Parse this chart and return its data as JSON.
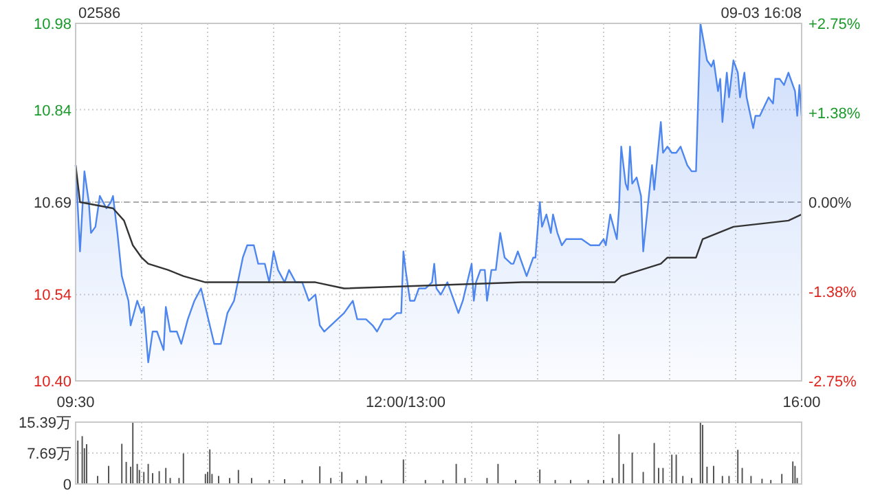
{
  "chart_data": [
    {
      "type": "area",
      "title": "02586",
      "subtitle": "09-03 16:08",
      "categories": [
        "09:30",
        null,
        null,
        null,
        null,
        null,
        null,
        null,
        null,
        null,
        null,
        null,
        null,
        null,
        null,
        null,
        null,
        null,
        null,
        null,
        null,
        null,
        null,
        null,
        null,
        null,
        null,
        null,
        null,
        null,
        null,
        null,
        null,
        null,
        null,
        null,
        null,
        null,
        null,
        null,
        null,
        null,
        null,
        null,
        null,
        null,
        null,
        null,
        null,
        null,
        null,
        null,
        null,
        null,
        null,
        null,
        null,
        null,
        null,
        null,
        null,
        null,
        null,
        null,
        null,
        null,
        null,
        null,
        null,
        null,
        null,
        null,
        null,
        null,
        null,
        null,
        null,
        null,
        null,
        null,
        null,
        null,
        null,
        null,
        null,
        null,
        null,
        null,
        null,
        null,
        null,
        null,
        null,
        null,
        null,
        null,
        null,
        null,
        null,
        null,
        null,
        null,
        null,
        null,
        null,
        null,
        null,
        null,
        null,
        null,
        null,
        null,
        null,
        null,
        null,
        null,
        null,
        null,
        null,
        null,
        null,
        null,
        null,
        null,
        null,
        null,
        null,
        null,
        null,
        null,
        null,
        null,
        null,
        null,
        null,
        null,
        null,
        null,
        null,
        null,
        null,
        null,
        null,
        null,
        null,
        null,
        null,
        null,
        null,
        null,
        "12:00/13:00",
        null,
        null,
        null,
        null,
        null,
        null,
        null,
        null,
        null,
        null,
        null,
        null,
        null,
        null,
        null,
        null,
        null,
        null,
        null,
        null,
        null,
        null,
        null,
        null,
        null,
        null,
        null,
        null,
        null,
        null,
        null,
        null,
        null,
        null,
        null,
        null,
        null,
        null,
        null,
        null,
        null,
        null,
        null,
        null,
        null,
        null,
        null,
        null,
        null,
        null,
        null,
        null,
        null,
        null,
        null,
        null,
        null,
        null,
        null,
        null,
        null,
        null,
        null,
        null,
        null,
        null,
        null,
        null,
        null,
        null,
        null,
        null,
        null,
        null,
        null,
        null,
        null,
        null,
        null,
        null,
        null,
        null,
        null,
        null,
        null,
        null,
        null,
        null,
        null,
        null,
        null,
        null,
        null,
        null,
        null,
        null,
        null,
        null,
        null,
        null,
        null,
        null,
        null,
        null,
        null,
        null,
        null,
        null,
        null,
        null,
        null,
        null,
        null,
        null,
        null,
        null,
        null,
        null,
        null,
        null,
        null,
        null,
        null,
        null,
        null,
        null,
        null,
        null,
        null,
        null,
        null,
        null,
        null,
        null,
        null,
        null,
        null,
        null,
        null,
        null,
        null,
        null,
        null,
        null,
        null,
        null,
        null,
        null,
        null,
        null,
        null,
        null,
        null,
        null,
        null,
        null,
        null,
        null,
        null,
        null,
        null,
        null,
        null,
        null,
        null,
        null,
        null,
        null,
        null,
        null,
        null,
        null,
        null,
        null,
        null,
        null,
        null,
        null,
        null,
        "16:00"
      ],
      "ylim": [
        10.4,
        10.98
      ],
      "yticks": [
        {
          "value": 10.4,
          "label": "10.40"
        },
        {
          "value": 10.54,
          "label": "10.54"
        },
        {
          "value": 10.69,
          "label": "10.69"
        },
        {
          "value": 10.84,
          "label": "10.84"
        },
        {
          "value": 10.98,
          "label": "10.98"
        }
      ],
      "y2lim": [
        -2.75,
        2.75
      ],
      "y2ticks": [
        {
          "value": -2.75,
          "label": "-2.75%"
        },
        {
          "value": -1.38,
          "label": "-1.38%"
        },
        {
          "value": 0,
          "label": "0.00%"
        },
        {
          "value": 1.38,
          "label": "+1.38%"
        },
        {
          "value": 2.75,
          "label": "+2.75%"
        }
      ],
      "grid": true,
      "ref_lines": [
        {
          "axis": "y",
          "value": 10.69,
          "color": "#aaaaaa",
          "line_style": "dashed"
        }
      ],
      "series": [
        {
          "color": "#4e86f0",
          "values": [
            10.75,
            null,
            10.61,
            null,
            10.74,
            null,
            10.69,
            10.64,
            null,
            10.65,
            null,
            10.7,
            null,
            null,
            10.68,
            null,
            10.69,
            10.7,
            null,
            10.64,
            null,
            10.57,
            null,
            null,
            10.53,
            10.49,
            null,
            null,
            10.53,
            null,
            10.51,
            10.52,
            null,
            10.43,
            null,
            10.48,
            null,
            10.48,
            null,
            null,
            10.45,
            10.52,
            null,
            10.48,
            null,
            null,
            10.48,
            null,
            10.46,
            null,
            null,
            10.5,
            null,
            null,
            10.53,
            null,
            null,
            10.55,
            null,
            10.52,
            null,
            null,
            null,
            10.46,
            null,
            null,
            10.46,
            null,
            null,
            10.51,
            null,
            null,
            10.53,
            null,
            null,
            null,
            10.6,
            null,
            10.62,
            null,
            null,
            10.62,
            null,
            10.59,
            null,
            null,
            10.59,
            null,
            10.56,
            null,
            10.61,
            null,
            10.58,
            null,
            null,
            10.56,
            null,
            10.58,
            null,
            null,
            10.56,
            null,
            null,
            10.56,
            null,
            null,
            10.53,
            null,
            null,
            10.54,
            null,
            10.49,
            null,
            10.48,
            null,
            null,
            null,
            null,
            null,
            10.5,
            null,
            null,
            10.51,
            null,
            null,
            null,
            10.53,
            null,
            10.5,
            null,
            null,
            null,
            10.5,
            null,
            null,
            10.49,
            null,
            10.48,
            null,
            null,
            10.5,
            null,
            null,
            10.5,
            null,
            null,
            10.51,
            null,
            10.51,
            10.61,
            10.58,
            null,
            10.53,
            null,
            10.53,
            null,
            10.55,
            null,
            null,
            10.55,
            null,
            null,
            10.56,
            10.59,
            10.55,
            null,
            10.54,
            null,
            null,
            10.56,
            null,
            null,
            10.53,
            null,
            10.51,
            null,
            10.53,
            null,
            null,
            null,
            10.59,
            10.53,
            10.56,
            null,
            10.58,
            null,
            10.58,
            10.53,
            null,
            10.58,
            null,
            10.58,
            null,
            10.64,
            null,
            10.6,
            null,
            null,
            10.59,
            10.59,
            null,
            10.61,
            null,
            null,
            null,
            10.57,
            null,
            null,
            10.6,
            10.6,
            null,
            10.69,
            10.65,
            null,
            10.67,
            null,
            10.64,
            10.67,
            null,
            10.64,
            null,
            10.62,
            null,
            10.63,
            null,
            null,
            10.63,
            null,
            null,
            null,
            10.63,
            null,
            null,
            null,
            10.62,
            null,
            null,
            null,
            10.62,
            null,
            10.63,
            10.62,
            null,
            10.67,
            null,
            null,
            10.63,
            10.68,
            10.78,
            null,
            10.72,
            10.71,
            10.78,
            10.72,
            null,
            10.73,
            null,
            10.7,
            10.61,
            null,
            10.68,
            null,
            10.75,
            10.71,
            null,
            null,
            10.82,
            10.77,
            null,
            10.78,
            null,
            10.77,
            null,
            10.77,
            null,
            10.78,
            null,
            null,
            10.75,
            null,
            10.74,
            null,
            10.74,
            null,
            10.98,
            null,
            10.94,
            10.92,
            null,
            10.91,
            10.92,
            null,
            10.87,
            10.89,
            10.82,
            null,
            10.9,
            10.86,
            null,
            10.92,
            null,
            10.9,
            10.86,
            null,
            10.9,
            10.86,
            null,
            null,
            10.81,
            10.83,
            null,
            10.83,
            null,
            null,
            null,
            10.86,
            null,
            10.85,
            10.89,
            null,
            10.89,
            null,
            10.88,
            null,
            10.9,
            null,
            null,
            10.87,
            10.83,
            10.88,
            10.83
          ]
        },
        {
          "type": "line",
          "color": "#333333",
          "values": [
            10.75,
            null,
            10.69,
            null,
            null,
            null,
            null,
            null,
            null,
            null,
            null,
            null,
            null,
            null,
            null,
            null,
            null,
            10.68,
            null,
            null,
            null,
            null,
            10.66,
            null,
            null,
            null,
            10.62,
            null,
            null,
            null,
            10.6,
            null,
            null,
            10.59,
            null,
            null,
            null,
            null,
            null,
            null,
            null,
            null,
            10.58,
            null,
            null,
            null,
            null,
            null,
            null,
            10.57,
            null,
            null,
            null,
            null,
            null,
            null,
            null,
            null,
            null,
            10.56,
            null,
            null,
            null,
            null,
            null,
            null,
            10.56,
            null,
            null,
            null,
            null,
            null,
            null,
            null,
            null,
            null,
            null,
            null,
            null,
            null,
            null,
            null,
            null,
            null,
            null,
            null,
            null,
            null,
            null,
            null,
            null,
            null,
            null,
            null,
            null,
            null,
            null,
            null,
            null,
            null,
            null,
            null,
            null,
            null,
            null,
            null,
            null,
            null,
            null,
            10.56,
            null,
            null,
            null,
            null,
            null,
            null,
            null,
            null,
            null,
            null,
            null,
            null,
            10.55,
            null,
            null,
            null,
            null,
            null,
            null,
            null,
            null,
            null,
            null,
            null,
            null,
            null,
            null,
            null,
            null,
            null,
            null,
            null,
            null,
            null,
            null,
            null,
            null,
            null,
            null,
            null,
            null,
            null,
            null,
            null,
            null,
            null,
            null,
            null,
            null,
            null,
            null,
            null,
            null,
            null,
            null,
            null,
            null,
            null,
            null,
            null,
            null,
            null,
            null,
            null,
            null,
            null,
            null,
            null,
            null,
            null,
            null,
            null,
            null,
            null,
            null,
            null,
            null,
            null,
            null,
            null,
            null,
            null,
            null,
            null,
            null,
            null,
            null,
            null,
            null,
            null,
            null,
            null,
            null,
            10.56,
            null,
            null,
            null,
            null,
            null,
            null,
            null,
            null,
            null,
            null,
            null,
            null,
            null,
            null,
            null,
            null,
            null,
            null,
            null,
            null,
            null,
            null,
            null,
            null,
            null,
            null,
            null,
            null,
            null,
            null,
            null,
            null,
            null,
            null,
            null,
            null,
            null,
            null,
            null,
            null,
            null,
            10.56,
            null,
            null,
            10.57,
            null,
            null,
            null,
            null,
            null,
            null,
            null,
            null,
            null,
            null,
            null,
            null,
            null,
            null,
            null,
            null,
            null,
            10.59,
            null,
            null,
            10.6,
            null,
            null,
            null,
            null,
            null,
            null,
            null,
            null,
            null,
            null,
            null,
            null,
            10.6,
            null,
            null,
            10.63,
            null,
            null,
            null,
            null,
            null,
            null,
            null,
            null,
            null,
            null,
            null,
            null,
            null,
            10.65,
            null,
            null,
            null,
            null,
            null,
            null,
            null,
            null,
            null,
            null,
            null,
            null,
            null,
            null,
            null,
            null,
            null,
            null,
            null,
            null,
            null,
            null,
            null,
            null,
            10.66,
            null,
            null,
            null,
            null,
            null,
            10.67
          ]
        }
      ]
    },
    {
      "type": "bar",
      "categories": [
        null,
        null,
        null,
        null,
        null,
        null,
        null,
        null,
        null,
        null,
        null,
        null,
        null,
        null,
        null,
        null,
        null,
        null,
        null,
        null,
        null,
        null,
        null,
        null,
        null,
        null,
        null,
        null,
        null,
        null,
        null,
        null,
        null,
        null,
        null,
        null,
        null,
        null,
        null,
        null,
        null,
        null,
        null,
        null,
        null,
        null,
        null,
        null,
        null,
        null,
        null,
        null,
        null,
        null,
        null,
        null,
        null,
        null,
        null,
        null,
        null,
        null,
        null,
        null,
        null,
        null,
        null,
        null,
        null,
        null,
        null,
        null,
        null,
        null,
        null,
        null,
        null,
        null,
        null,
        null,
        null,
        null,
        null,
        null,
        null,
        null,
        null,
        null,
        null,
        null,
        null,
        null,
        null,
        null,
        null,
        null,
        null,
        null,
        null,
        null,
        null,
        null,
        null,
        null,
        null,
        null,
        null,
        null,
        null,
        null,
        null,
        null,
        null,
        null,
        null,
        null,
        null,
        null,
        null,
        null,
        null,
        null,
        null,
        null,
        null,
        null,
        null,
        null,
        null,
        null,
        null,
        null,
        null,
        null,
        null,
        null,
        null,
        null,
        null,
        null,
        null,
        null,
        null,
        null,
        null,
        null,
        null,
        null,
        null,
        null,
        null,
        null,
        null,
        null,
        null,
        null,
        null,
        null,
        null,
        null,
        null,
        null,
        null,
        null,
        null,
        null,
        null,
        null,
        null,
        null,
        null,
        null,
        null,
        null,
        null,
        null,
        null,
        null,
        null,
        null,
        null,
        null,
        null,
        null,
        null,
        null,
        null,
        null,
        null,
        null,
        null,
        null,
        null,
        null,
        null,
        null,
        null,
        null,
        null,
        null,
        null,
        null,
        null,
        null,
        null,
        null,
        null,
        null,
        null,
        null,
        null,
        null,
        null,
        null,
        null,
        null,
        null,
        null,
        null,
        null,
        null,
        null,
        null,
        null,
        null,
        null,
        null,
        null,
        null,
        null,
        null,
        null,
        null,
        null,
        null,
        null,
        null,
        null,
        null,
        null,
        null,
        null,
        null,
        null,
        null,
        null,
        null,
        null,
        null,
        null,
        null,
        null,
        null,
        null,
        null,
        null,
        null,
        null,
        null,
        null,
        null,
        null,
        null,
        null,
        null,
        null,
        null,
        null,
        null,
        null,
        null,
        null,
        null,
        null,
        null,
        null,
        null,
        null,
        null,
        null,
        null,
        null,
        null,
        null,
        null,
        null,
        null,
        null,
        null,
        null,
        null,
        null,
        null,
        null,
        null,
        null,
        null,
        null,
        null,
        null,
        null,
        null,
        null,
        null,
        null,
        null,
        null,
        null,
        null,
        null,
        null,
        null,
        null,
        null,
        null,
        null,
        null,
        null,
        null,
        null,
        null,
        null,
        null,
        null,
        null,
        null,
        null,
        null,
        null,
        null,
        null
      ],
      "ylim": [
        0,
        15.39
      ],
      "yticks": [
        0,
        {
          "value": 7.69,
          "label": "7.69万"
        },
        {
          "value": 15.39,
          "label": "15.39万"
        }
      ],
      "grid": true,
      "tick_labels": "y",
      "color": "#555555",
      "values": [
        null,
        10.8,
        null,
        11.9,
        8.9,
        9.9,
        null,
        null,
        null,
        null,
        2,
        null,
        null,
        null,
        null,
        4.5,
        null,
        null,
        null,
        null,
        null,
        10,
        null,
        5.5,
        null,
        4.3,
        15.3,
        null,
        5,
        3.5,
        null,
        3,
        null,
        5,
        null,
        2.7,
        null,
        null,
        3.2,
        null,
        null,
        4,
        null,
        1.5,
        null,
        null,
        null,
        1.5,
        null,
        7.6,
        null,
        null,
        null,
        null,
        null,
        null,
        null,
        null,
        null,
        2.5,
        3,
        8.6,
        2.5,
        null,
        null,
        2,
        null,
        null,
        null,
        null,
        1.5,
        null,
        null,
        null,
        3.5,
        null,
        null,
        null,
        null,
        null,
        1.5,
        null,
        null,
        null,
        null,
        null,
        null,
        null,
        1,
        null,
        null,
        null,
        null,
        null,
        null,
        1.2,
        null,
        null,
        null,
        null,
        null,
        null,
        null,
        1,
        null,
        null,
        null,
        null,
        null,
        null,
        null,
        4.4,
        null,
        null,
        null,
        null,
        1.5,
        null,
        null,
        null,
        null,
        3,
        null,
        null,
        null,
        null,
        null,
        null,
        1,
        null,
        null,
        null,
        2,
        null,
        null,
        null,
        null,
        null,
        null,
        1,
        null,
        null,
        null,
        null,
        null,
        null,
        null,
        null,
        null,
        6.1,
        null,
        null,
        null,
        null,
        null,
        null,
        null,
        null,
        null,
        1,
        null,
        null,
        null,
        null,
        null,
        null,
        null,
        1,
        null,
        null,
        null,
        null,
        null,
        5,
        null,
        null,
        null,
        1.5,
        null,
        null,
        null,
        null,
        null,
        null,
        null,
        null,
        null,
        1.5,
        null,
        null,
        null,
        null,
        5,
        null,
        null,
        null,
        null,
        null,
        null,
        null,
        1,
        null,
        null,
        null,
        null,
        null,
        null,
        null,
        null,
        null,
        null,
        3.6,
        null,
        null,
        null,
        null,
        null,
        null,
        1,
        null,
        null,
        null,
        null,
        null,
        null,
        1,
        null,
        null,
        null,
        null,
        null,
        null,
        null,
        1,
        null,
        null,
        null,
        null,
        null,
        null,
        1,
        null,
        null,
        null,
        1.5,
        null,
        null,
        12.4,
        null,
        5,
        null,
        null,
        null,
        7.8,
        null,
        null,
        null,
        null,
        3,
        null,
        null,
        null,
        null,
        10.2,
        null,
        4,
        null,
        4,
        null,
        null,
        null,
        7.3,
        null,
        7.3,
        null,
        null,
        2,
        null,
        null,
        null,
        1.5,
        null,
        null,
        null,
        15.3,
        14.7,
        null,
        4.3,
        null,
        null,
        4.5,
        null,
        null,
        null,
        2,
        null,
        null,
        2,
        null,
        null,
        null,
        8.5,
        null,
        4,
        null,
        null,
        null,
        2,
        null,
        null,
        null,
        null,
        1.3,
        null,
        null,
        null,
        1,
        null,
        null,
        null,
        null,
        2.5,
        null,
        null,
        null,
        null,
        5.6,
        4.5,
        1.5,
        null,
        null
      ]
    }
  ]
}
